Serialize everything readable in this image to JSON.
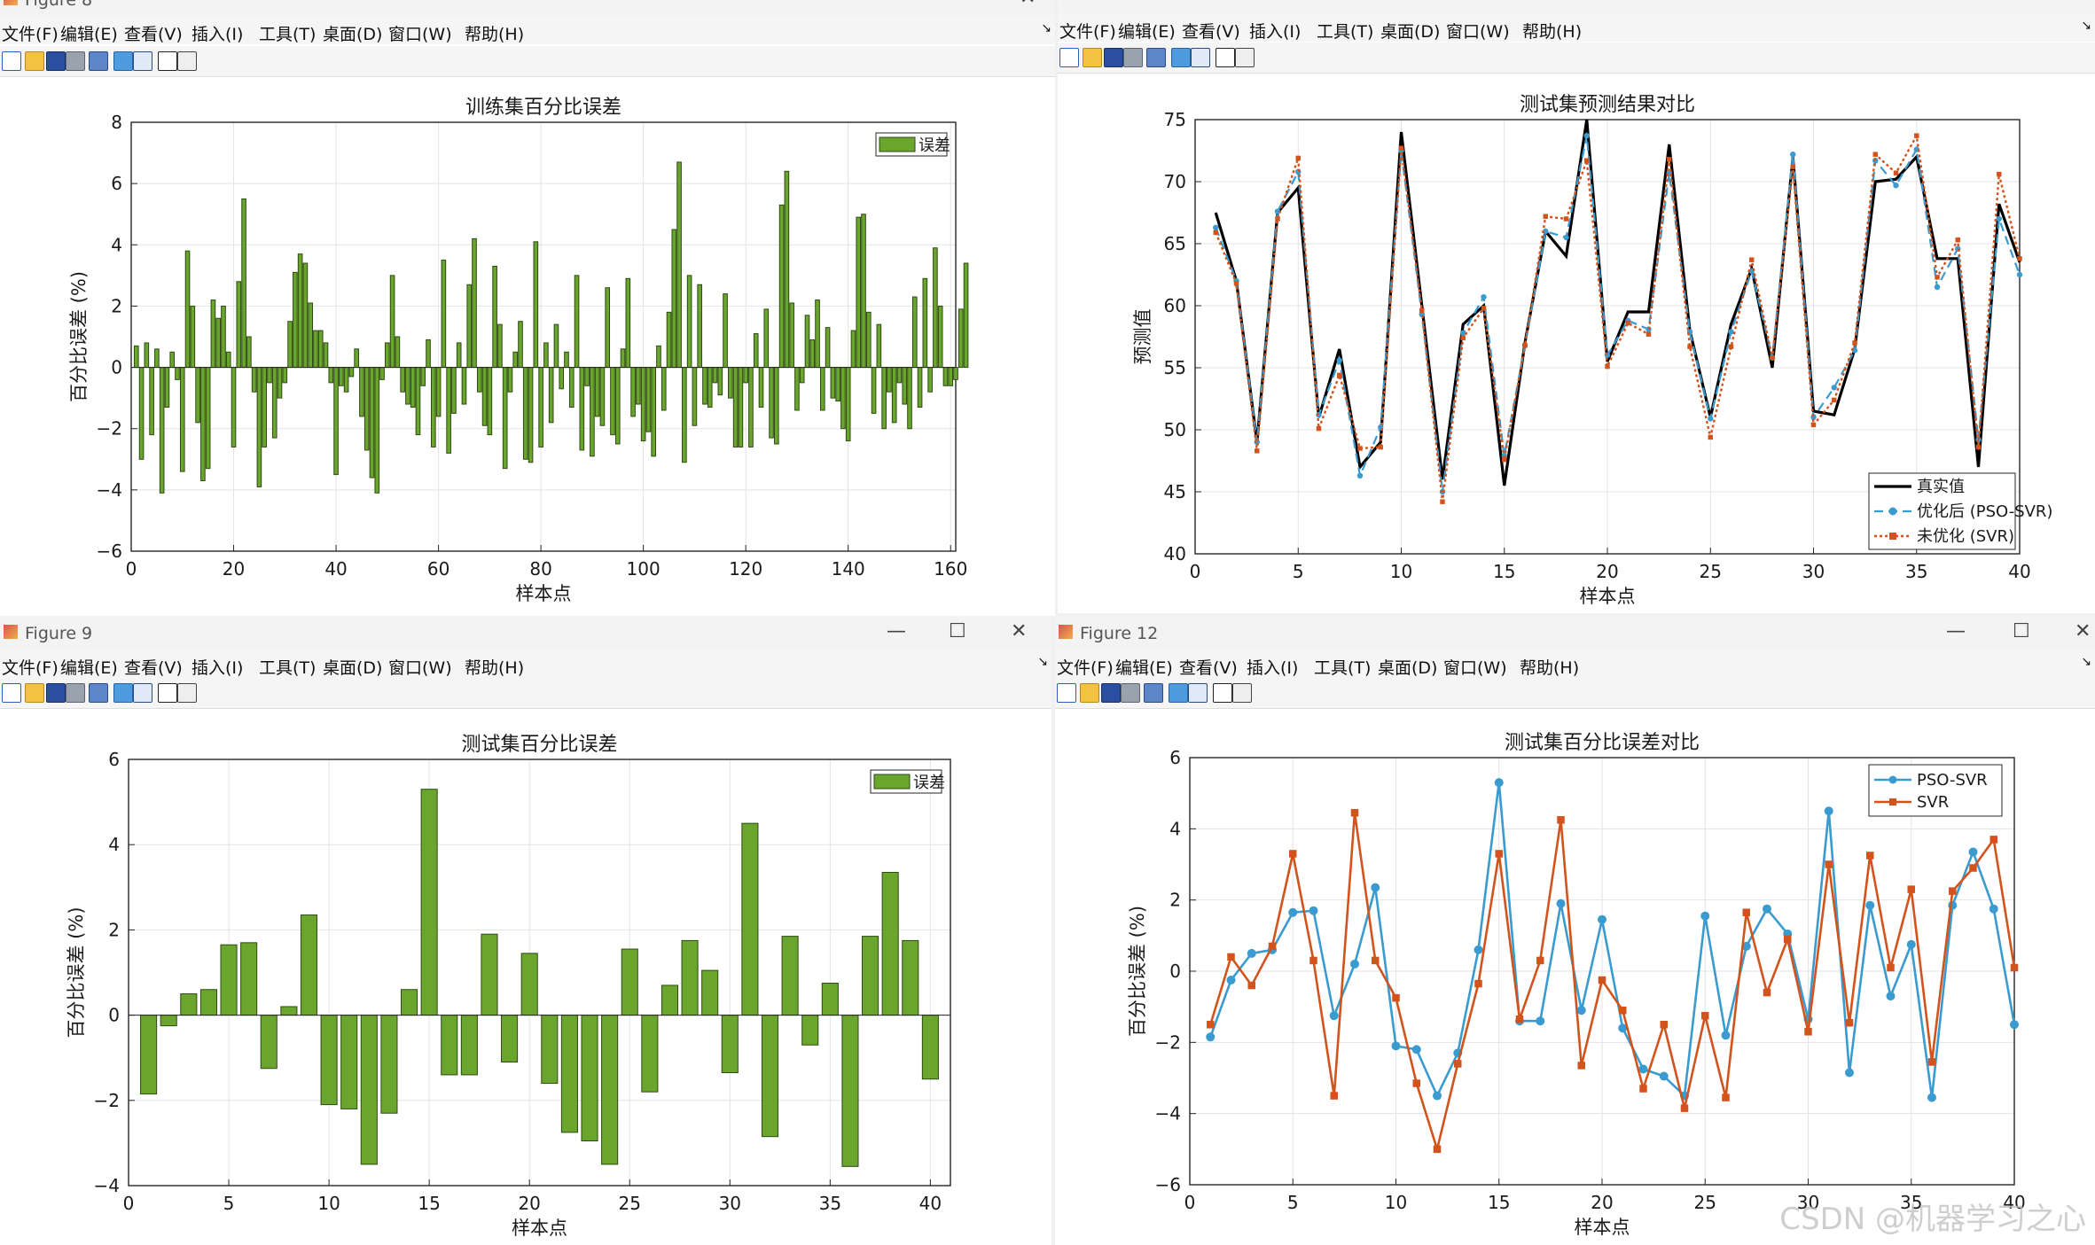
{
  "menu": [
    "文件(F)",
    "编辑(E)",
    "查看(V)",
    "插入(I)",
    "工具(T)",
    "桌面(D)",
    "窗口(W)",
    "帮助(H)"
  ],
  "windows": [
    {
      "title": "Figure 8"
    },
    {
      "title": ""
    },
    {
      "title": "Figure 9"
    },
    {
      "title": "Figure 12"
    }
  ],
  "watermark": "CSDN @机器学习之心",
  "colors": {
    "bar": "#6aa52d",
    "true": "#000000",
    "pso": "#3a9bd0",
    "svr": "#d2531b"
  },
  "chart_data": [
    {
      "type": "bar",
      "title": "训练集百分比误差",
      "xlabel": "样本点",
      "ylabel": "百分比误差 (%)",
      "xlim": [
        0,
        161
      ],
      "ylim": [
        -6,
        8
      ],
      "xticks": [
        0,
        20,
        40,
        60,
        80,
        100,
        120,
        140,
        160
      ],
      "yticks": [
        -6,
        -4,
        -2,
        0,
        2,
        4,
        6,
        8
      ],
      "legend": [
        "误差"
      ],
      "legend_loc": "top-right",
      "grid": true,
      "x_start": 1,
      "values": [
        0.7,
        -3.0,
        0.8,
        -2.2,
        0.6,
        -4.1,
        -1.3,
        0.5,
        -0.4,
        -3.4,
        3.8,
        2.0,
        -1.8,
        -3.7,
        -3.3,
        2.2,
        1.6,
        2.0,
        0.5,
        -2.6,
        2.8,
        5.5,
        1.0,
        -0.8,
        -3.9,
        -2.6,
        -0.5,
        -2.3,
        -1.0,
        -0.5,
        1.5,
        3.1,
        3.7,
        3.4,
        2.1,
        1.2,
        1.2,
        0.8,
        -0.5,
        -3.5,
        -0.6,
        -0.8,
        -0.3,
        0.6,
        -1.6,
        -2.7,
        -3.6,
        -4.1,
        -0.4,
        0.8,
        3.0,
        1.0,
        -0.8,
        -1.2,
        -1.3,
        -2.2,
        -0.6,
        0.9,
        -2.6,
        -1.6,
        3.5,
        -2.8,
        -1.5,
        0.8,
        -1.2,
        2.7,
        4.2,
        -0.8,
        -1.9,
        -2.2,
        3.3,
        1.4,
        -3.3,
        -0.8,
        0.5,
        1.5,
        -3.0,
        -3.1,
        4.1,
        -2.6,
        0.8,
        -1.8,
        1.4,
        -0.7,
        0.5,
        -1.3,
        3.0,
        -2.7,
        -0.6,
        -2.9,
        -1.6,
        -1.9,
        2.6,
        -2.2,
        -2.5,
        0.6,
        2.9,
        -1.6,
        -1.2,
        -2.4,
        -2.1,
        -2.9,
        0.7,
        -1.4,
        1.8,
        4.5,
        6.7,
        -3.1,
        3.0,
        -1.9,
        2.7,
        -1.2,
        -1.3,
        -0.5,
        -0.9,
        2.4,
        -1.0,
        -2.6,
        -2.6,
        -0.5,
        -2.6,
        1.1,
        -1.3,
        1.9,
        -2.3,
        -2.5,
        5.3,
        6.4,
        2.1,
        -1.4,
        -0.5,
        1.7,
        0.9,
        2.2,
        -1.4,
        1.3,
        -1.0,
        -1.1,
        -2.0,
        -2.4,
        1.2,
        4.9,
        5.0,
        1.8,
        -1.5,
        1.4,
        -2.0,
        -0.8,
        -1.8,
        -0.5,
        -1.2,
        -2.0,
        2.3,
        -1.3,
        2.9,
        -0.8,
        3.9,
        2.0,
        -0.6,
        -0.6,
        -0.4,
        1.9,
        3.4
      ]
    },
    {
      "type": "line",
      "title": "测试集预测结果对比",
      "xlabel": "样本点",
      "ylabel": "预测值",
      "xlim": [
        0,
        40
      ],
      "ylim": [
        40,
        75
      ],
      "xticks": [
        0,
        5,
        10,
        15,
        20,
        25,
        30,
        35,
        40
      ],
      "yticks": [
        40,
        45,
        50,
        55,
        60,
        65,
        70,
        75
      ],
      "legend_loc": "bottom-right",
      "grid": true,
      "x": [
        1,
        2,
        3,
        4,
        5,
        6,
        7,
        8,
        9,
        10,
        11,
        12,
        13,
        14,
        15,
        16,
        17,
        18,
        19,
        20,
        21,
        22,
        23,
        24,
        25,
        26,
        27,
        28,
        29,
        30,
        31,
        32,
        33,
        34,
        35,
        36,
        37,
        38,
        39,
        40
      ],
      "series": [
        {
          "name": "真实值",
          "values": [
            67.5,
            62,
            49,
            67.5,
            69.5,
            51,
            56.5,
            47,
            49,
            74,
            60,
            46,
            58.5,
            60,
            45.5,
            57,
            66,
            64,
            75,
            55.5,
            59.5,
            59.5,
            73,
            58,
            51,
            58.5,
            63,
            55,
            72,
            51.5,
            51.2,
            56.5,
            70,
            70.2,
            72,
            63.8,
            63.8,
            47,
            68.2,
            63.5
          ]
        },
        {
          "name": "优化后 (PSO-SVR)",
          "values": [
            66.3,
            62,
            49,
            67.6,
            70.8,
            51.2,
            55.6,
            46.3,
            50.2,
            72.5,
            59.3,
            45.0,
            57.8,
            60.7,
            47.9,
            56.8,
            66.0,
            65.5,
            73.7,
            56.0,
            58.8,
            58.1,
            70.7,
            57.9,
            50.9,
            57.9,
            62.8,
            55.8,
            72.2,
            51.0,
            53.4,
            56.4,
            71.7,
            69.7,
            72.6,
            61.5,
            64.6,
            49.2,
            67.0,
            62.5
          ]
        },
        {
          "name": "未优化 (SVR)",
          "values": [
            65.9,
            61.8,
            48.3,
            67.0,
            71.9,
            50.1,
            54.4,
            48.5,
            48.6,
            72.7,
            59.6,
            44.2,
            57.4,
            59.8,
            47.6,
            56.8,
            67.2,
            67.0,
            71.7,
            55.1,
            58.6,
            57.7,
            71.8,
            56.7,
            49.4,
            56.7,
            63.7,
            55.8,
            71.2,
            50.4,
            52.4,
            57.0,
            72.2,
            70.7,
            73.7,
            62.3,
            65.3,
            48.6,
            70.6,
            63.8
          ]
        }
      ]
    },
    {
      "type": "bar",
      "title": "测试集百分比误差",
      "xlabel": "样本点",
      "ylabel": "百分比误差 (%)",
      "xlim": [
        0,
        41
      ],
      "ylim": [
        -4,
        6
      ],
      "xticks": [
        0,
        5,
        10,
        15,
        20,
        25,
        30,
        35,
        40
      ],
      "yticks": [
        -4,
        -2,
        0,
        2,
        4,
        6
      ],
      "legend": [
        "误差"
      ],
      "legend_loc": "top-right",
      "grid": true,
      "x_start": 1,
      "values": [
        -1.85,
        -0.25,
        0.5,
        0.6,
        1.65,
        1.7,
        -1.25,
        0.2,
        2.35,
        -2.1,
        -2.2,
        -3.5,
        -2.3,
        0.6,
        5.3,
        -1.4,
        -1.4,
        1.9,
        -1.1,
        1.45,
        -1.6,
        -2.75,
        -2.95,
        -3.5,
        1.55,
        -1.8,
        0.7,
        1.75,
        1.05,
        -1.35,
        4.5,
        -2.85,
        1.85,
        -0.7,
        0.75,
        -3.55,
        1.85,
        3.35,
        1.75,
        -1.5
      ]
    },
    {
      "type": "line",
      "title": "测试集百分比误差对比",
      "xlabel": "样本点",
      "ylabel": "百分比误差 (%)",
      "xlim": [
        0,
        40
      ],
      "ylim": [
        -6,
        6
      ],
      "xticks": [
        0,
        5,
        10,
        15,
        20,
        25,
        30,
        35,
        40
      ],
      "yticks": [
        -6,
        -4,
        -2,
        0,
        2,
        4,
        6
      ],
      "legend_loc": "top-right",
      "grid": true,
      "x": [
        1,
        2,
        3,
        4,
        5,
        6,
        7,
        8,
        9,
        10,
        11,
        12,
        13,
        14,
        15,
        16,
        17,
        18,
        19,
        20,
        21,
        22,
        23,
        24,
        25,
        26,
        27,
        28,
        29,
        30,
        31,
        32,
        33,
        34,
        35,
        36,
        37,
        38,
        39,
        40
      ],
      "series": [
        {
          "name": "PSO-SVR",
          "values": [
            -1.85,
            -0.25,
            0.5,
            0.6,
            1.65,
            1.7,
            -1.25,
            0.2,
            2.35,
            -2.1,
            -2.2,
            -3.5,
            -2.3,
            0.6,
            5.3,
            -1.4,
            -1.4,
            1.9,
            -1.1,
            1.45,
            -1.6,
            -2.75,
            -2.95,
            -3.5,
            1.55,
            -1.8,
            0.7,
            1.75,
            1.05,
            -1.35,
            4.5,
            -2.85,
            1.85,
            -0.7,
            0.75,
            -3.55,
            1.85,
            3.35,
            1.75,
            -1.5
          ]
        },
        {
          "name": "SVR",
          "values": [
            -1.5,
            0.4,
            -0.4,
            0.7,
            3.3,
            0.3,
            -3.5,
            4.45,
            0.3,
            -0.75,
            -3.15,
            -5.0,
            -2.6,
            -0.35,
            3.3,
            -1.35,
            0.3,
            4.25,
            -2.65,
            -0.25,
            -1.1,
            -3.3,
            -1.5,
            -3.85,
            -1.25,
            -3.55,
            1.65,
            -0.6,
            0.9,
            -1.7,
            3.0,
            -1.45,
            3.25,
            0.1,
            2.3,
            -2.55,
            2.25,
            2.9,
            3.7,
            0.1
          ]
        }
      ]
    }
  ]
}
